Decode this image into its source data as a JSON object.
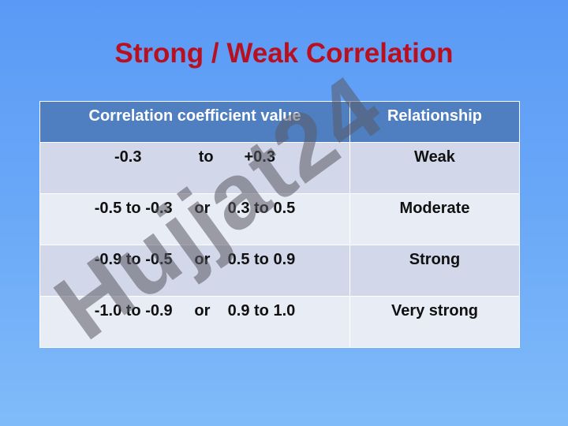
{
  "title": "Strong / Weak Correlation",
  "table": {
    "header": [
      "Correlation coefficient value",
      "Relationship"
    ],
    "rows": [
      [
        "-0.3             to       +0.3",
        "Weak"
      ],
      [
        "-0.5 to -0.3     or    0.3 to 0.5",
        "Moderate"
      ],
      [
        "-0.9 to -0.5     or    0.5 to 0.9",
        "Strong"
      ],
      [
        "-1.0 to -0.9     or    0.9 to 1.0",
        "Very strong"
      ]
    ]
  },
  "watermark": "Hujjat24"
}
